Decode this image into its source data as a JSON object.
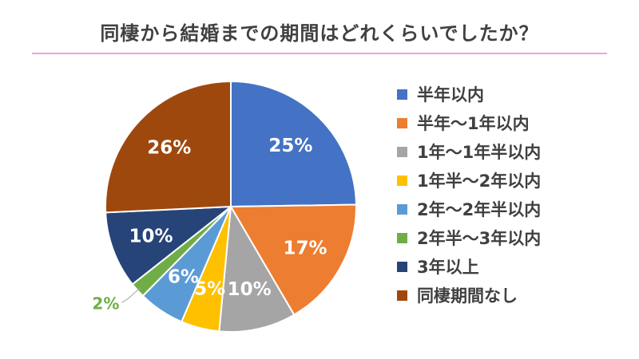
{
  "chart_data": {
    "type": "pie",
    "title": "同棲から結婚までの期間はどれくらいでしたか？",
    "slices": [
      {
        "label": "半年以内",
        "value": 25,
        "data_label": "25%",
        "color": "#4472c4",
        "label_color": "#ffffff"
      },
      {
        "label": "半年～1年以内",
        "value": 17,
        "data_label": "17%",
        "color": "#ed7d31",
        "label_color": "#ffffff"
      },
      {
        "label": "1年～1年半以内",
        "value": 10,
        "data_label": "10%",
        "color": "#a5a5a5",
        "label_color": "#ffffff"
      },
      {
        "label": "1年半～2年以内",
        "value": 5,
        "data_label": "5%",
        "color": "#ffc000",
        "label_color": "#ffffff"
      },
      {
        "label": "2年～2年半以内",
        "value": 6,
        "data_label": "6%",
        "color": "#5b9bd5",
        "label_color": "#ffffff"
      },
      {
        "label": "2年半～3年以内",
        "value": 2,
        "data_label": "2%",
        "color": "#70ad47",
        "label_color": "#70ad47",
        "label_outside": true
      },
      {
        "label": "3年以上",
        "value": 10,
        "data_label": "10%",
        "color": "#264478",
        "label_color": "#ffffff"
      },
      {
        "label": "同棲期間なし",
        "value": 26,
        "data_label": "26%",
        "color": "#9e480e",
        "label_color": "#ffffff"
      }
    ],
    "start_angle_deg": 0,
    "direction": "clockwise",
    "legend_position": "right"
  }
}
